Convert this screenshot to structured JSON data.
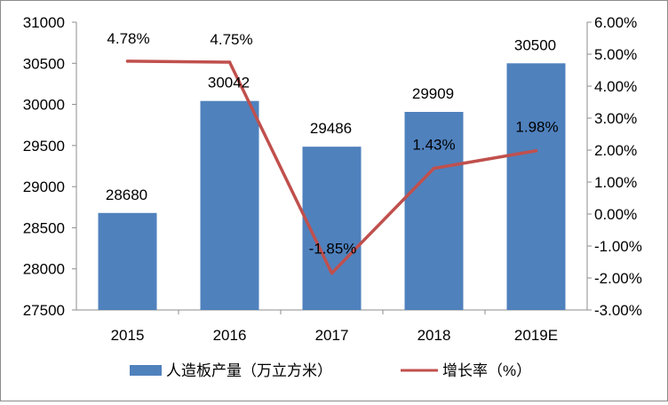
{
  "chart_data": {
    "type": "bar+line",
    "title": "",
    "categories": [
      "2015",
      "2016",
      "2017",
      "2018",
      "2019E"
    ],
    "series": [
      {
        "name": "人造板产量（万立方米）",
        "type": "bar",
        "axis": "left",
        "values": [
          28680,
          30042,
          29486,
          29909,
          30500
        ],
        "labels": [
          "28680",
          "30042",
          "29486",
          "29909",
          "30500"
        ]
      },
      {
        "name": "增长率（%）",
        "type": "line",
        "axis": "right",
        "values": [
          4.78,
          4.75,
          -1.85,
          1.43,
          1.98
        ],
        "labels": [
          "4.78%",
          "4.75%",
          "-1.85%",
          "1.43%",
          "1.98%"
        ]
      }
    ],
    "y_left": {
      "min": 27500,
      "max": 31000,
      "step": 500,
      "ticks": [
        "27500",
        "28000",
        "28500",
        "29000",
        "29500",
        "30000",
        "30500",
        "31000"
      ]
    },
    "y_right": {
      "min": -3,
      "max": 6,
      "step": 1,
      "ticks": [
        "-3.00%",
        "-2.00%",
        "-1.00%",
        "0.00%",
        "1.00%",
        "2.00%",
        "3.00%",
        "4.00%",
        "5.00%",
        "6.00%"
      ]
    },
    "grid": false,
    "legend_position": "bottom",
    "colors": {
      "bar": "#4f81bd",
      "line": "#c0504d",
      "axis": "#8c8c8c"
    }
  }
}
